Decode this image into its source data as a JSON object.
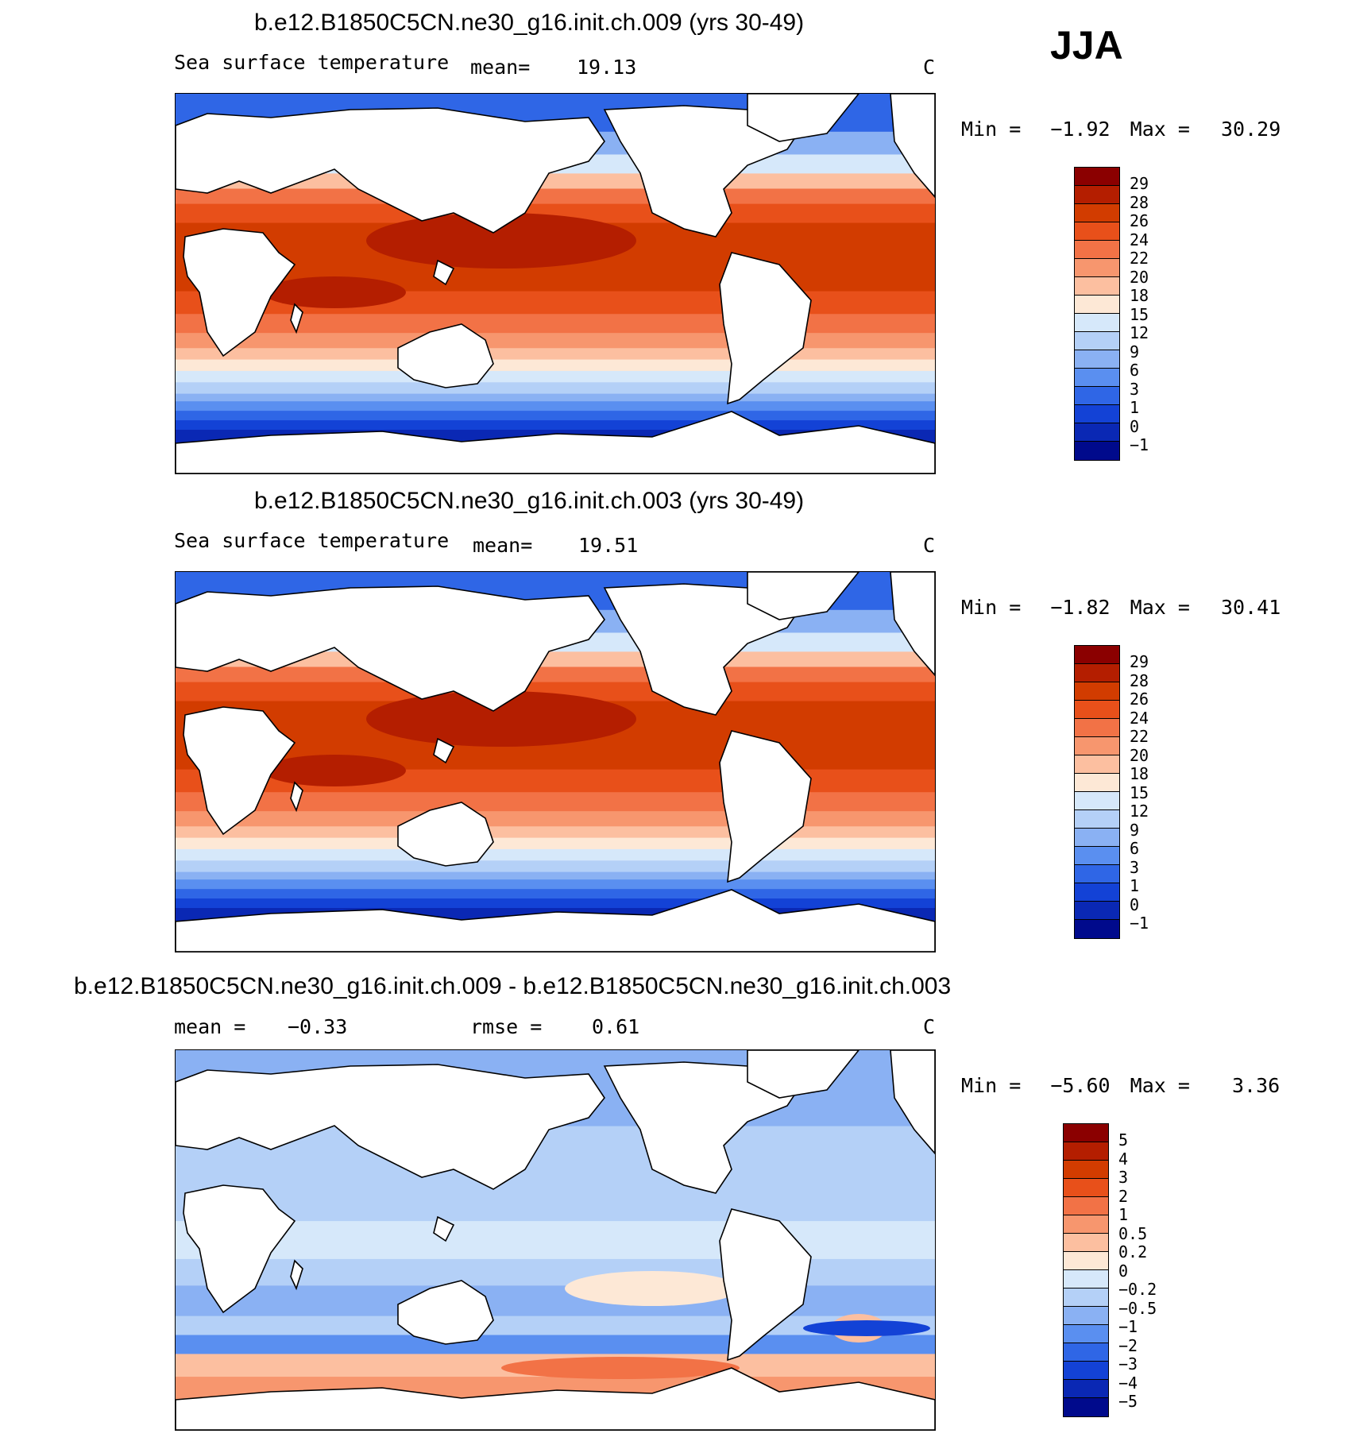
{
  "season": "JJA",
  "chart_data": [
    {
      "type": "heatmap",
      "title": "b.e12.B1850C5CN.ne30_g16.init.ch.009 (yrs 30-49)",
      "subtitle": "Sea surface temperature",
      "mean_label": "mean=",
      "mean": "19.13",
      "units": "C",
      "min_label": "Min =",
      "min": "−1.92",
      "max_label": "Max =",
      "max": "30.29",
      "levels": [
        "29",
        "28",
        "26",
        "24",
        "22",
        "20",
        "18",
        "15",
        "12",
        "9",
        "6",
        "3",
        "1",
        "0",
        "−1"
      ],
      "colors": [
        "#8b0000",
        "#b41e00",
        "#d23c00",
        "#e8501a",
        "#f27246",
        "#f7966e",
        "#fcbfa0",
        "#fde8d6",
        "#d6e8fa",
        "#b4d0f7",
        "#8ab1f3",
        "#5a8ff0",
        "#2f66e6",
        "#1342d6",
        "#0a28b4",
        "#000a8c"
      ]
    },
    {
      "type": "heatmap",
      "title": "b.e12.B1850C5CN.ne30_g16.init.ch.003 (yrs 30-49)",
      "subtitle": "Sea surface temperature",
      "mean_label": "mean=",
      "mean": "19.51",
      "units": "C",
      "min_label": "Min =",
      "min": "−1.82",
      "max_label": "Max =",
      "max": "30.41",
      "levels": [
        "29",
        "28",
        "26",
        "24",
        "22",
        "20",
        "18",
        "15",
        "12",
        "9",
        "6",
        "3",
        "1",
        "0",
        "−1"
      ],
      "colors": [
        "#8b0000",
        "#b41e00",
        "#d23c00",
        "#e8501a",
        "#f27246",
        "#f7966e",
        "#fcbfa0",
        "#fde8d6",
        "#d6e8fa",
        "#b4d0f7",
        "#8ab1f3",
        "#5a8ff0",
        "#2f66e6",
        "#1342d6",
        "#0a28b4",
        "#000a8c"
      ]
    },
    {
      "type": "heatmap",
      "title": "b.e12.B1850C5CN.ne30_g16.init.ch.009 - b.e12.B1850C5CN.ne30_g16.init.ch.003",
      "mean_label": "mean =",
      "mean": "−0.33",
      "rmse_label": "rmse =",
      "rmse": "0.61",
      "units": "C",
      "min_label": "Min =",
      "min": "−5.60",
      "max_label": "Max =",
      "max": "3.36",
      "levels": [
        "5",
        "4",
        "3",
        "2",
        "1",
        "0.5",
        "0.2",
        "0",
        "−0.2",
        "−0.5",
        "−1",
        "−2",
        "−3",
        "−4",
        "−5"
      ],
      "colors": [
        "#8b0000",
        "#b41e00",
        "#d23c00",
        "#e8501a",
        "#f27246",
        "#f7966e",
        "#fcbfa0",
        "#fde8d6",
        "#d6e8fa",
        "#b4d0f7",
        "#8ab1f3",
        "#5a8ff0",
        "#2f66e6",
        "#1342d6",
        "#0a28b4",
        "#000a8c"
      ]
    }
  ]
}
